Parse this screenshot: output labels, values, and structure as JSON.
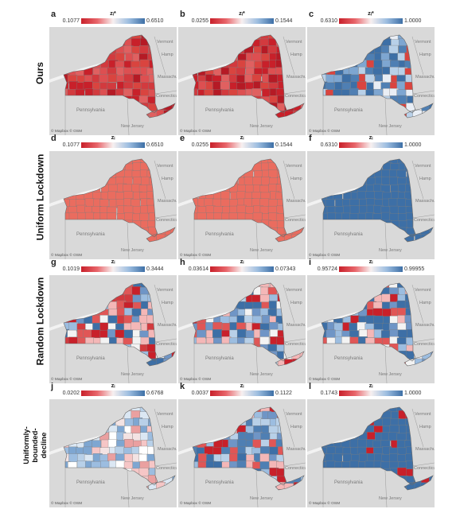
{
  "credit": "© Mapbox © OSM",
  "geo_labels": {
    "vermont": "Vermont",
    "hamp": "Hamp",
    "massachusetts": "Massachuse",
    "connecticut": "Connecticut",
    "pennsylvania": "Pennsylvania",
    "new_jersey": "New Jersey"
  },
  "rows": [
    {
      "label": "Ours",
      "panels": [
        {
          "letter": "a",
          "title": "zᵢ*",
          "min": "0.1077",
          "max": "0.6510",
          "palette": [
            "#c8202a",
            "#d23a3e",
            "#dd4f51",
            "#c8202a",
            "#b51a25",
            "#e06060",
            "#d9443f"
          ]
        },
        {
          "letter": "b",
          "title": "zᵢ*",
          "min": "0.0255",
          "max": "0.1544",
          "palette": [
            "#c8202a",
            "#d23a3e",
            "#dd4f51",
            "#c8202a",
            "#b51a25",
            "#e06060",
            "#d9443f"
          ]
        },
        {
          "letter": "c",
          "title": "zᵢ*",
          "min": "0.6310",
          "max": "1.0000",
          "palette": [
            "#3d6fa6",
            "#4f7fb3",
            "#7ea6d1",
            "#b8d0e8",
            "#e9eef5",
            "#3d6fa6",
            "#d9443f"
          ]
        }
      ]
    },
    {
      "label": "Uniform Lockdown",
      "panels": [
        {
          "letter": "d",
          "title": "zᵢ",
          "min": "0.1077",
          "max": "0.6510",
          "palette": [
            "#ea6c5f"
          ]
        },
        {
          "letter": "e",
          "title": "zᵢ",
          "min": "0.0255",
          "max": "0.1544",
          "palette": [
            "#ea6c5f"
          ]
        },
        {
          "letter": "f",
          "title": "zᵢ",
          "min": "0.6310",
          "max": "1.0000",
          "palette": [
            "#3d6fa6"
          ]
        }
      ]
    },
    {
      "label": "Random Lockdown",
      "panels": [
        {
          "letter": "g",
          "title": "zᵢ",
          "min": "0.1019",
          "max": "0.3444",
          "palette": [
            "#3d6fa6",
            "#c8202a",
            "#9cbde0",
            "#f4b7b7",
            "#e05656",
            "#6f95c6",
            "#f3f3f3",
            "#d23a3e"
          ]
        },
        {
          "letter": "h",
          "title": "zᵢ",
          "min": "0.03614",
          "max": "0.07343",
          "palette": [
            "#3d6fa6",
            "#c8202a",
            "#9cbde0",
            "#f4b7b7",
            "#e05656",
            "#6f95c6",
            "#f3f3f3",
            "#b8d0e8"
          ]
        },
        {
          "letter": "i",
          "title": "zᵢ",
          "min": "0.95724",
          "max": "0.99955",
          "palette": [
            "#3d6fa6",
            "#c8202a",
            "#9cbde0",
            "#f4b7b7",
            "#e05656",
            "#6f95c6",
            "#f3f3f3",
            "#3d6fa6"
          ]
        }
      ]
    },
    {
      "label": "Uniformly-bounded-decline Lockdown",
      "panels": [
        {
          "letter": "j",
          "title": "zᵢ",
          "min": "0.0202",
          "max": "0.6768",
          "palette": [
            "#ffffff",
            "#dbe7f3",
            "#b8d0e8",
            "#f6c6c6",
            "#9cbde0",
            "#f3e3e3",
            "#eaa0a0",
            "#7ea6d1"
          ]
        },
        {
          "letter": "k",
          "title": "zᵢ",
          "min": "0.0037",
          "max": "0.1122",
          "palette": [
            "#6f95c6",
            "#3d6fa6",
            "#9cbde0",
            "#e05656",
            "#f4b7b7",
            "#c8202a",
            "#b8d0e8",
            "#4f7fb3"
          ]
        },
        {
          "letter": "l",
          "title": "zᵢ",
          "min": "0.1743",
          "max": "1.0000",
          "palette": [
            "#3d6fa6",
            "#3d6fa6",
            "#3d6fa6",
            "#3d6fa6",
            "#3d6fa6",
            "#3d6fa6",
            "#c8202a",
            "#3d6fa6"
          ]
        }
      ]
    }
  ]
}
